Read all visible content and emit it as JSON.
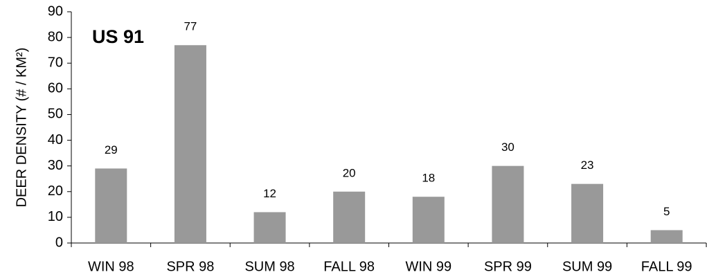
{
  "chart_data": {
    "type": "bar",
    "annotation": "US 91",
    "ylabel": "DEER DENSITY (# / KM²)",
    "categories": [
      "WIN 98",
      "SPR 98",
      "SUM 98",
      "FALL 98",
      "WIN 99",
      "SPR 99",
      "SUM 99",
      "FALL 99"
    ],
    "values": [
      29,
      77,
      12,
      20,
      18,
      30,
      23,
      5
    ],
    "color": "#999999",
    "ylim": [
      0,
      90
    ],
    "yticks": [
      0,
      10,
      20,
      30,
      40,
      50,
      60,
      70,
      80,
      90
    ],
    "grid": false
  }
}
